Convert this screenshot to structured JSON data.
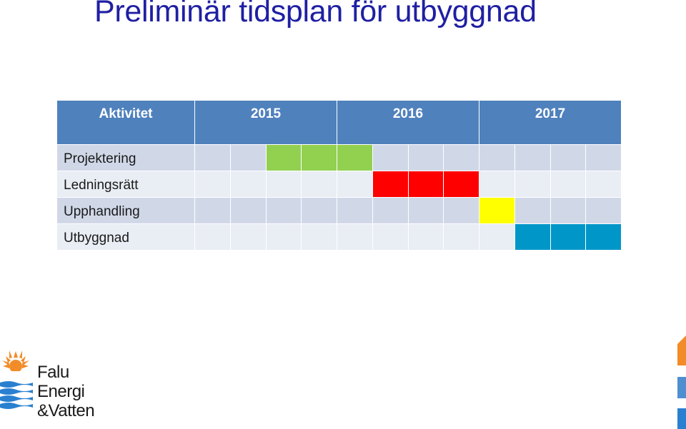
{
  "title": "Preliminär tidsplan för utbyggnad",
  "table": {
    "header": {
      "activity": "Aktivitet",
      "years": [
        "2015",
        "2016",
        "2017"
      ]
    },
    "rows": [
      {
        "label": "Projektering",
        "filled_quarters": [
          5,
          6,
          7
        ],
        "color": "#92d050"
      },
      {
        "label": "Ledningsrätt",
        "filled_quarters": [
          8,
          9,
          10
        ],
        "color": "#ff0000"
      },
      {
        "label": "Upphandling",
        "filled_quarters": [
          11
        ],
        "color": "#ffff00"
      },
      {
        "label": "Utbyggnad",
        "filled_quarters": [
          12,
          13,
          14
        ],
        "color": "#0096c8"
      }
    ],
    "colors": {
      "header": "#4f81bd",
      "row_odd": "#d0d8e8",
      "row_even": "#e9edf4"
    }
  },
  "logo": {
    "icon": "sun-and-waves-logo",
    "lines": [
      "Falu",
      "Energi",
      "&Vatten"
    ]
  },
  "decoration": {
    "colors": [
      "#f28c28",
      "#4f8fd0",
      "#2a80d0"
    ]
  }
}
